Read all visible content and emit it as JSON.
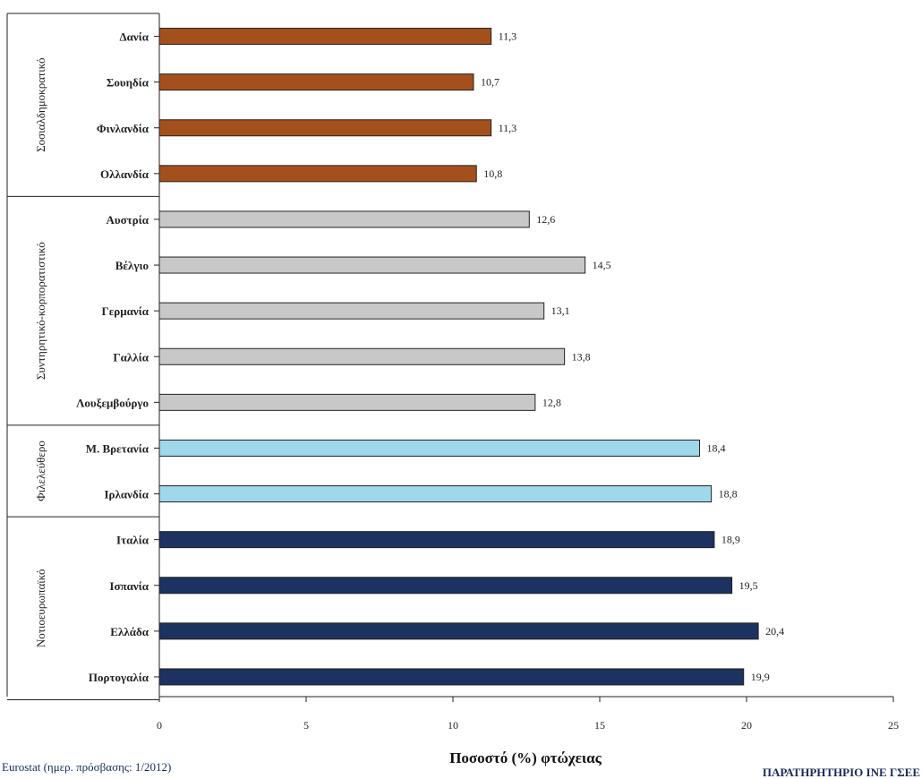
{
  "chart_data": {
    "type": "bar",
    "orientation": "horizontal",
    "xlabel": "Ποσοστό (%) φτώχειας",
    "xlim": [
      0,
      25
    ],
    "xticks": [
      "0",
      "5",
      "10",
      "15",
      "20",
      "25"
    ],
    "grid": false,
    "groups": [
      {
        "name": "Σοσιαλδημοκρατικό",
        "color": "#a4501c",
        "items": [
          {
            "category": "Δανία",
            "value": 11.3,
            "label": "11,3"
          },
          {
            "category": "Σουηδία",
            "value": 10.7,
            "label": "10,7"
          },
          {
            "category": "Φινλανδία",
            "value": 11.3,
            "label": "11,3"
          },
          {
            "category": "Ολλανδία",
            "value": 10.8,
            "label": "10,8"
          }
        ]
      },
      {
        "name": "Συντηρητικό-κορπορατιστικό",
        "color": "#c8c8c8",
        "items": [
          {
            "category": "Αυστρία",
            "value": 12.6,
            "label": "12,6"
          },
          {
            "category": "Βέλγιο",
            "value": 14.5,
            "label": "14,5"
          },
          {
            "category": "Γερμανία",
            "value": 13.1,
            "label": "13,1"
          },
          {
            "category": "Γαλλία",
            "value": 13.8,
            "label": "13,8"
          },
          {
            "category": "Λουξεμβούργο",
            "value": 12.8,
            "label": "12,8"
          }
        ]
      },
      {
        "name": "Φιλελεύθερο",
        "color": "#9fd8ea",
        "items": [
          {
            "category": "Μ. Βρετανία",
            "value": 18.4,
            "label": "18,4"
          },
          {
            "category": "Ιρλανδία",
            "value": 18.8,
            "label": "18,8"
          }
        ]
      },
      {
        "name": "Νοτιοευρωπαϊκό",
        "color": "#1c3260",
        "items": [
          {
            "category": "Ιταλία",
            "value": 18.9,
            "label": "18,9"
          },
          {
            "category": "Ισπανία",
            "value": 19.5,
            "label": "19,5"
          },
          {
            "category": "Ελλάδα",
            "value": 20.4,
            "label": "20,4"
          },
          {
            "category": "Πορτογαλία",
            "value": 19.9,
            "label": "19,9"
          }
        ]
      }
    ]
  },
  "footer": {
    "source": "Eurostat (ημερ. πρόσβασης: 1/2012)",
    "publisher": "ΠΑΡΑΤΗΡΗΤΗΡΙΟ ΙΝΕ ΓΣΕΕ"
  }
}
